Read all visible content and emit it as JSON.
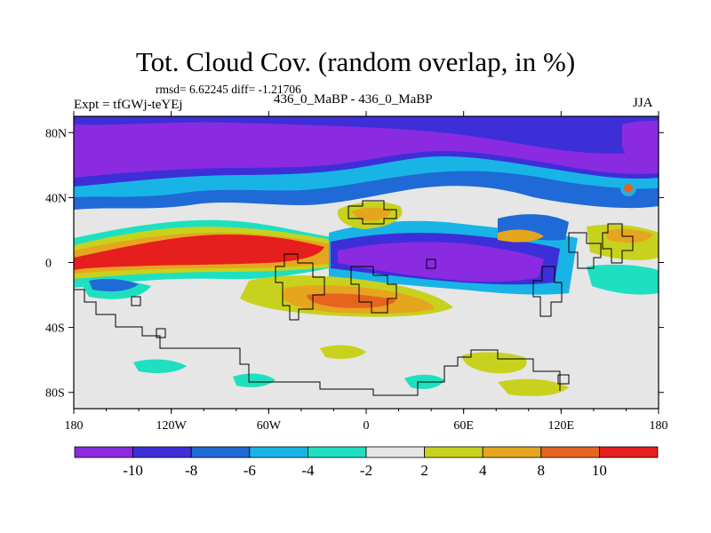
{
  "header": {
    "title": "Tot. Cloud Cov. (random overlap, in %)",
    "stats": "rmsd= 6.62245 diff= -1.21706",
    "experiment": "Expt = tfGWj-teYEj",
    "comparison": "436_0_MaBP - 436_0_MaBP",
    "season": "JJA"
  },
  "chart_data": {
    "type": "heatmap",
    "title": "Tot. Cloud Cov. (random overlap, in %)",
    "xlabel": "",
    "ylabel": "",
    "x_ticks": [
      "180",
      "120W",
      "60W",
      "0",
      "60E",
      "120E",
      "180"
    ],
    "y_ticks": [
      "80N",
      "40N",
      "0",
      "40S",
      "80S"
    ],
    "xlim": [
      -180,
      180
    ],
    "ylim": [
      -90,
      90
    ],
    "colorbar": {
      "labels": [
        "-10",
        "-8",
        "-6",
        "-4",
        "-2",
        "2",
        "4",
        "8",
        "10"
      ],
      "colors": [
        "#8a2be2",
        "#3d2fd8",
        "#1f6ad6",
        "#19b4e6",
        "#1ee0c0",
        "#e6e6e6",
        "#c8d21e",
        "#e6a51e",
        "#e6641e",
        "#e61e1e"
      ]
    },
    "background_color": "#e6e6e6",
    "regions": [
      {
        "name": "arctic-band",
        "level": -10,
        "color": "#8a2be2"
      },
      {
        "name": "tropical-pacific-band",
        "level": 10,
        "color": "#e61e1e"
      },
      {
        "name": "atlantic-africa-band",
        "level": -10,
        "color": "#8a2be2"
      },
      {
        "name": "south-atlantic-band",
        "level": 8,
        "color": "#e6a51e"
      }
    ]
  }
}
